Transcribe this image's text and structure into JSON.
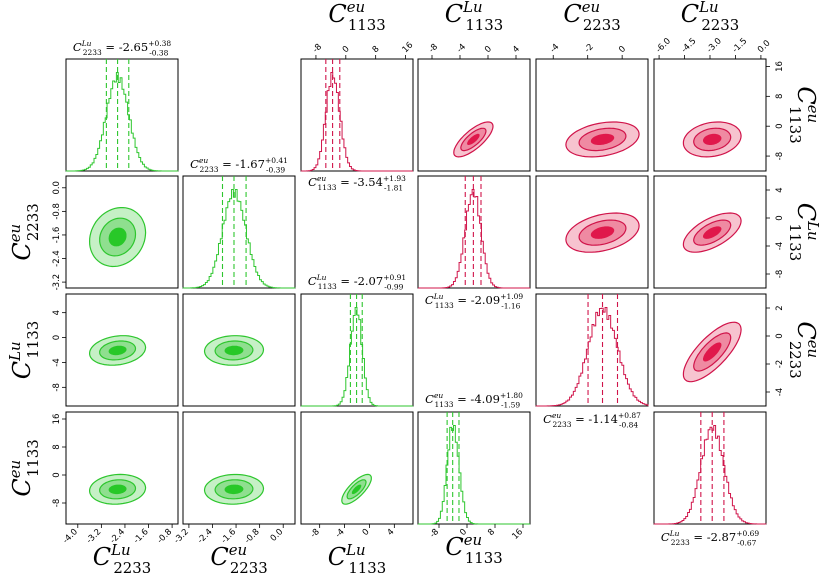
{
  "chart_data": {
    "type": "corner",
    "description_colors": {
      "lower_triangle": "#2ec62e",
      "upper_triangle": "#e0184b"
    },
    "colors": {
      "green_line": "#2ec62e",
      "green_fill_outer": "#c6f0c6",
      "green_fill_mid": "#8fdf8f",
      "green_fill_core": "#28c828",
      "red_line": "#d0144a",
      "red_fill_outer": "#f7c3cf",
      "red_fill_mid": "#ef8aa2",
      "red_fill_core": "#e0184b"
    },
    "parameters": [
      {
        "id": "C2233Lu",
        "symbol": "C",
        "sup": "Lu",
        "sub": "2233",
        "range": [
          -4.4,
          -0.6
        ],
        "ticks": [
          -4.0,
          -3.2,
          -2.4,
          -1.6,
          -0.8
        ],
        "tick_labels": [
          "-4.0",
          "-3.2",
          "-2.4",
          "-1.6",
          "-0.8"
        ]
      },
      {
        "id": "C2233eu",
        "symbol": "C",
        "sup": "eu",
        "sub": "2233",
        "range": [
          -3.4,
          0.4
        ],
        "ticks": [
          -3.2,
          -2.4,
          -1.6,
          -0.8,
          0.0
        ],
        "tick_labels": [
          "-3.2",
          "-2.4",
          "-1.6",
          "-0.8",
          "0.0"
        ]
      },
      {
        "id": "C1133Lu",
        "symbol": "C",
        "sup": "Lu",
        "sub": "1133",
        "range": [
          -11,
          7
        ],
        "ticks": [
          -8,
          -4,
          0,
          4
        ],
        "tick_labels": [
          "-8",
          "-4",
          "0",
          "4"
        ]
      },
      {
        "id": "C1133eu",
        "symbol": "C",
        "sup": "eu",
        "sub": "1133",
        "range": [
          -14,
          18
        ],
        "ticks": [
          -8,
          0,
          8,
          16
        ],
        "tick_labels": [
          "-8",
          "0",
          "8",
          "16"
        ]
      }
    ],
    "upper_parameters": [
      {
        "id": "C1133eu",
        "symbol": "C",
        "sup": "eu",
        "sub": "1133",
        "range": [
          -12,
          18
        ],
        "ticks": [
          -8,
          0,
          8,
          16
        ],
        "tick_labels": [
          "-8",
          "0",
          "8",
          "16"
        ]
      },
      {
        "id": "C1133Lu",
        "symbol": "C",
        "sup": "Lu",
        "sub": "1133",
        "range": [
          -10,
          6
        ],
        "ticks": [
          -8,
          -4,
          0,
          4
        ],
        "tick_labels": [
          "-8",
          "-4",
          "0",
          "4"
        ]
      },
      {
        "id": "C2233eu",
        "symbol": "C",
        "sup": "eu",
        "sub": "2233",
        "range": [
          -5,
          1.5
        ],
        "ticks": [
          -4,
          -2,
          0
        ],
        "tick_labels": [
          "-4",
          "-2",
          "0"
        ]
      },
      {
        "id": "C2233Lu",
        "symbol": "C",
        "sup": "Lu",
        "sub": "2233",
        "range": [
          -6.3,
          0.3
        ],
        "ticks": [
          -6.0,
          -4.5,
          -3.0,
          -1.5,
          0.0
        ],
        "tick_labels": [
          "-6.0",
          "-4.5",
          "-3.0",
          "-1.5",
          "0.0"
        ]
      }
    ],
    "upper_y_parameters": [
      {
        "id": "C1133eu",
        "range": [
          -12,
          18
        ],
        "ticks": [
          -8,
          0,
          8,
          16
        ],
        "tick_labels": [
          "-8",
          "0",
          "8",
          "16"
        ]
      },
      {
        "id": "C1133Lu",
        "range": [
          -10,
          6
        ],
        "ticks": [
          -8,
          -4,
          0,
          4
        ],
        "tick_labels": [
          "-8",
          "-4",
          "0",
          "4"
        ]
      },
      {
        "id": "C2233eu",
        "range": [
          -5,
          3
        ],
        "ticks": [
          -4,
          -2,
          0,
          2
        ],
        "tick_labels": [
          "-4",
          "-2",
          "0",
          "2"
        ]
      }
    ],
    "green_marginals": [
      {
        "param": "C2233Lu",
        "median": -2.65,
        "plus": 0.38,
        "minus": 0.38,
        "median_str": "-2.65",
        "plus_str": "+0.38",
        "minus_str": "-0.38"
      },
      {
        "param": "C2233eu",
        "median": -1.67,
        "plus": 0.41,
        "minus": 0.39,
        "median_str": "-1.67",
        "plus_str": "+0.41",
        "minus_str": "-0.39"
      },
      {
        "param": "C1133Lu",
        "median": -2.07,
        "plus": 0.91,
        "minus": 0.99,
        "median_str": "-2.07",
        "plus_str": "+0.91",
        "minus_str": "-0.99"
      },
      {
        "param": "C1133eu",
        "median": -4.09,
        "plus": 1.8,
        "minus": 1.59,
        "median_str": "-4.09",
        "plus_str": "+1.80",
        "minus_str": "-1.59"
      }
    ],
    "red_marginals": [
      {
        "param": "C1133eu",
        "median": -3.54,
        "plus": 1.93,
        "minus": 1.81,
        "median_str": "-3.54",
        "plus_str": "+1.93",
        "minus_str": "-1.81"
      },
      {
        "param": "C1133Lu",
        "median": -2.09,
        "plus": 1.09,
        "minus": 1.16,
        "median_str": "-2.09",
        "plus_str": "+1.09",
        "minus_str": "-1.16"
      },
      {
        "param": "C2233eu",
        "median": -1.14,
        "plus": 0.87,
        "minus": 0.84,
        "median_str": "-1.14",
        "plus_str": "+0.87",
        "minus_str": "-0.84"
      },
      {
        "param": "C2233Lu",
        "median": -2.87,
        "plus": 0.69,
        "minus": 0.67,
        "median_str": "-2.87",
        "plus_str": "+0.69",
        "minus_str": "-0.67"
      }
    ],
    "green_joint": [
      {
        "x": "C2233Lu",
        "y": "C2233eu",
        "cx": -2.65,
        "cy": -1.67,
        "sx": 0.38,
        "sy": 0.4,
        "rho": 0.15
      },
      {
        "x": "C2233Lu",
        "y": "C1133Lu",
        "cx": -2.65,
        "cy": -2.07,
        "sx": 0.38,
        "sy": 0.95,
        "rho": 0.2
      },
      {
        "x": "C2233eu",
        "y": "C1133Lu",
        "cx": -1.67,
        "cy": -2.07,
        "sx": 0.4,
        "sy": 0.95,
        "rho": 0.05
      },
      {
        "x": "C2233Lu",
        "y": "C1133eu",
        "cx": -2.65,
        "cy": -4.09,
        "sx": 0.38,
        "sy": 1.7,
        "rho": 0.1
      },
      {
        "x": "C2233eu",
        "y": "C1133eu",
        "cx": -1.67,
        "cy": -4.09,
        "sx": 0.4,
        "sy": 1.7,
        "rho": 0.05
      },
      {
        "x": "C1133Lu",
        "y": "C1133eu",
        "cx": -2.07,
        "cy": -4.09,
        "sx": 0.95,
        "sy": 1.7,
        "rho": 0.75
      }
    ],
    "red_joint": [
      {
        "x": "C1133Lu",
        "y": "C1133eu",
        "cx": -2.09,
        "cy": -3.54,
        "sx": 1.12,
        "sy": 1.87,
        "rho": 0.75
      },
      {
        "x": "C2233eu",
        "y": "C1133eu",
        "cx": -1.14,
        "cy": -3.54,
        "sx": 0.85,
        "sy": 1.87,
        "rho": 0.3
      },
      {
        "x": "C2233Lu",
        "y": "C1133eu",
        "cx": -2.87,
        "cy": -3.54,
        "sx": 0.68,
        "sy": 1.87,
        "rho": 0.2
      },
      {
        "x": "C2233eu",
        "y": "C1133Lu",
        "cx": -1.14,
        "cy": -2.09,
        "sx": 0.85,
        "sy": 1.12,
        "rho": 0.35
      },
      {
        "x": "C2233Lu",
        "y": "C1133Lu",
        "cx": -2.87,
        "cy": -2.09,
        "sx": 0.68,
        "sy": 1.12,
        "rho": 0.6
      },
      {
        "x": "C2233Lu",
        "y": "C2233eu",
        "cx": -2.87,
        "cy": -1.14,
        "sx": 0.68,
        "sy": 0.85,
        "rho": 0.75
      }
    ]
  }
}
